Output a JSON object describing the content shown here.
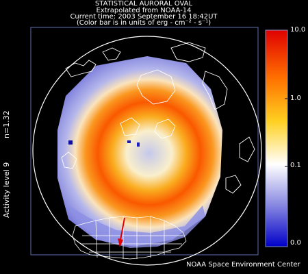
{
  "header": {
    "line1": "STATISTICAL AURORAL OVAL",
    "line2": "Extrapolated from NOAA-14",
    "line3": "Current time: 2003 September 16 18:42UT",
    "line4": "(Color bar is in units of erg - cm⁻² - s⁻¹)"
  },
  "side_labels": {
    "n_value": "n=1.32",
    "activity": "Activity level 9"
  },
  "colorbar": {
    "ticks": [
      "10.0",
      "1.0",
      "0.1",
      "0.0"
    ],
    "colors": [
      "#e00000",
      "#ff7000",
      "#ffd020",
      "#ffffff",
      "#8080e0",
      "#0000c8"
    ]
  },
  "credit": "NOAA Space Environment Center"
}
